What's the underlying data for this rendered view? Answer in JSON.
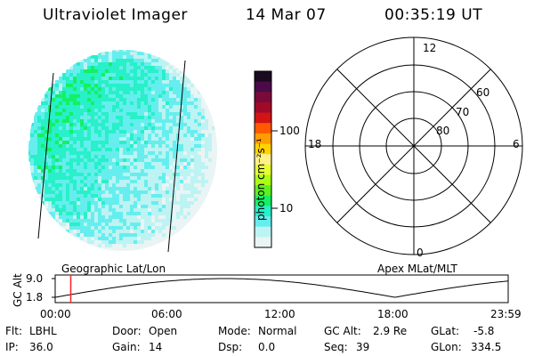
{
  "header": {
    "instrument": "Ultraviolet Imager",
    "date": "14 Mar 07",
    "time": "00:35:19 UT"
  },
  "colorbar": {
    "unit_label": "photon cm⁻²s⁻¹",
    "ticks": [
      "100",
      "10"
    ],
    "colors": [
      "#1a0a1f",
      "#4b0a4a",
      "#7a0a3a",
      "#a00a28",
      "#d21414",
      "#ff5a00",
      "#ff9c00",
      "#ffd200",
      "#fff08a",
      "#e6ff30",
      "#aaff14",
      "#5ef01e",
      "#14f064",
      "#28f0c8",
      "#66eeee",
      "#bdf3f3",
      "#eaf4f4"
    ]
  },
  "polar": {
    "mlt_labels": {
      "top": "12",
      "bottom": "0",
      "left": "18",
      "right": "6"
    },
    "lat_labels": [
      "60",
      "70",
      "80"
    ]
  },
  "timeline": {
    "ylabel": "GC Alt",
    "yticks": [
      "9.0",
      "1.8"
    ],
    "left_title": "Geographic Lat/Lon",
    "right_title": "Apex MLat/MLT",
    "xticks": [
      "00:00",
      "06:00",
      "12:00",
      "18:00",
      "23:59"
    ],
    "marker_time_hours": 0.59
  },
  "info": [
    [
      {
        "k": "Flt:",
        "v": "LBHL"
      },
      {
        "k": "Door:",
        "v": "Open"
      },
      {
        "k": "Mode:",
        "v": "Normal"
      },
      {
        "k": "GC Alt:",
        "v": "2.9 Re"
      },
      {
        "k": "GLat:",
        "v": "-5.8"
      }
    ],
    [
      {
        "k": "IP:",
        "v": "36.0"
      },
      {
        "k": "Gain:",
        "v": "14"
      },
      {
        "k": "Dsp:",
        "v": "0.0"
      },
      {
        "k": "Seq:",
        "v": "39"
      },
      {
        "k": "GLon:",
        "v": "334.5"
      }
    ]
  ]
}
